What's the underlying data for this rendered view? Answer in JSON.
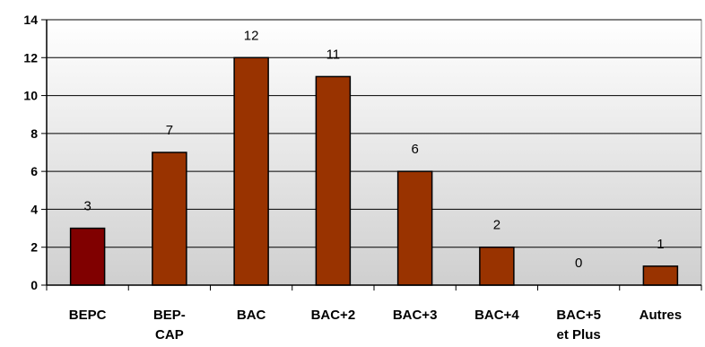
{
  "chart_data": {
    "type": "bar",
    "categories": [
      [
        "BEPC"
      ],
      [
        "BEP-",
        "CAP"
      ],
      [
        "BAC"
      ],
      [
        "BAC+2"
      ],
      [
        "BAC+3"
      ],
      [
        "BAC+4"
      ],
      [
        "BAC+5",
        "et Plus"
      ],
      [
        "Autres"
      ]
    ],
    "values": [
      3,
      7,
      12,
      11,
      6,
      2,
      0,
      1
    ],
    "ylim": [
      0,
      14
    ],
    "yticks": [
      0,
      2,
      4,
      6,
      8,
      10,
      12,
      14
    ],
    "grid": true,
    "colors": {
      "bar": "#993300",
      "bar_highlight": "#800000",
      "plot_background_top": "#ffffff",
      "plot_background_bottom": "#cfcfcf",
      "gridline": "#000000"
    }
  }
}
